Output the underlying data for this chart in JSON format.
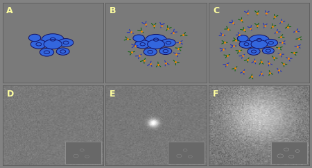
{
  "bg_color": "#828282",
  "panel_bg": "#7a7a7a",
  "cell_color": "#3366dd",
  "cell_color2": "#4488ff",
  "cell_edge": "#111166",
  "antibody_blue": "#2233bb",
  "antibody_green": "#116611",
  "antibody_dot": "#ff8800",
  "label_color": "#ffffa0",
  "label_fontsize": 9,
  "inset_bg": "#686868",
  "inset_edge": "#999999",
  "panels": [
    "A",
    "B",
    "C",
    "D",
    "E",
    "F"
  ],
  "fig_width": 4.5,
  "fig_height": 2.42
}
